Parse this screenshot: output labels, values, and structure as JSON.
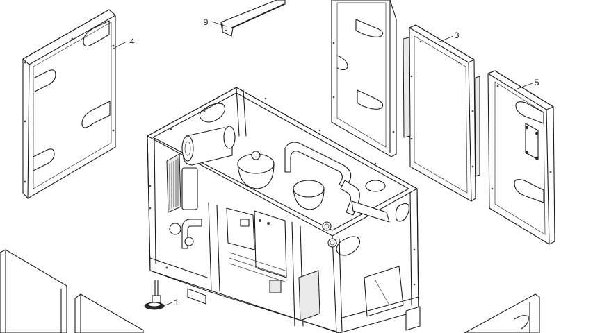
{
  "diagram": {
    "callouts": [
      {
        "id": "1",
        "label": "1"
      },
      {
        "id": "3",
        "label": "3"
      },
      {
        "id": "4",
        "label": "4"
      },
      {
        "id": "5",
        "label": "5"
      },
      {
        "id": "9",
        "label": "9"
      }
    ]
  }
}
